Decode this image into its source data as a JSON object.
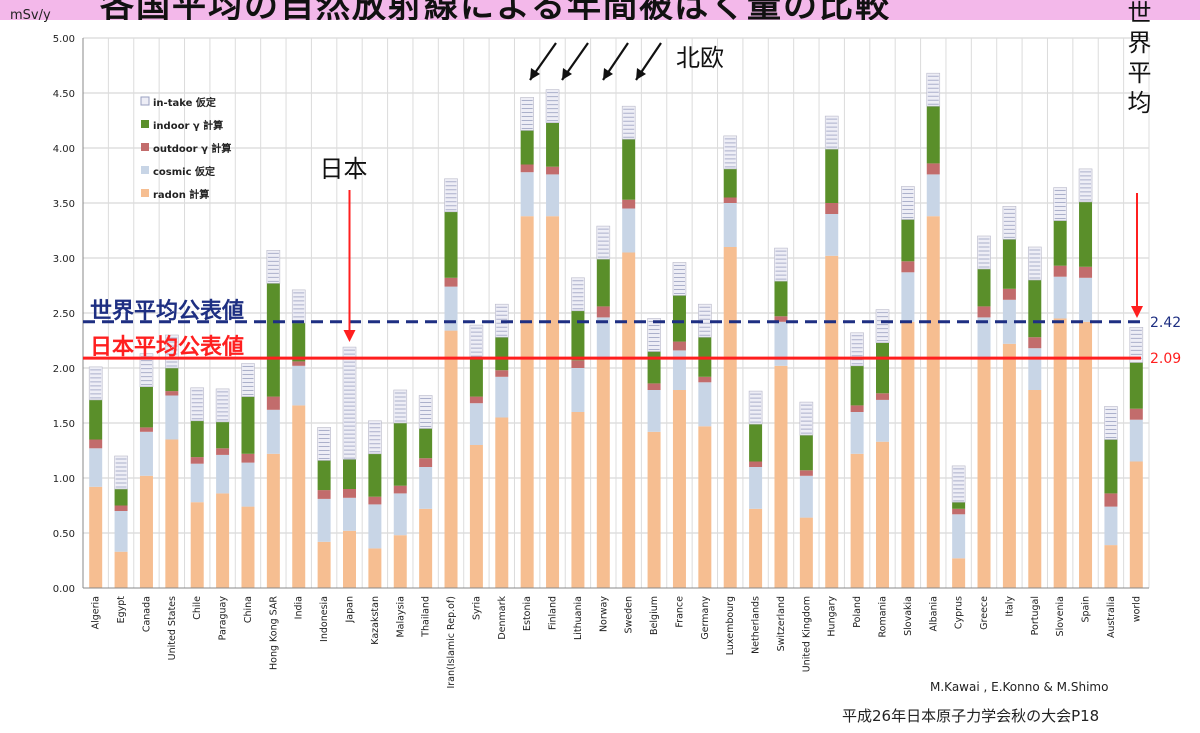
{
  "title": "各国平均の自然放射線による年間被ばく量の比較",
  "chart_data": {
    "type": "bar",
    "stacked": true,
    "ylabel": "mSv/y",
    "ylim": [
      0,
      5.0
    ],
    "yticks": [
      "0.00",
      "0.50",
      "1.00",
      "1.50",
      "2.00",
      "2.50",
      "3.00",
      "3.50",
      "4.00",
      "4.50",
      "5.00"
    ],
    "grid": true,
    "legend_position": "top-left",
    "categories": [
      "Algeria",
      "Egypt",
      "Canada",
      "United States",
      "Chile",
      "Paraguay",
      "China",
      "Hong Kong SAR",
      "India",
      "Indonesia",
      "Japan",
      "Kazakstan",
      "Malaysia",
      "Thailand",
      "Iran(Islamic Rep.of)",
      "Syria",
      "Denmark",
      "Estonia",
      "Finland",
      "Lithuania",
      "Norway",
      "Sweden",
      "Belgium",
      "France",
      "Germany",
      "Luxembourg",
      "Netherlands",
      "Switzerland",
      "United Kingdom",
      "Hungary",
      "Poland",
      "Romania",
      "Slovakia",
      "Albania",
      "Cyprus",
      "Greece",
      "Italy",
      "Portugal",
      "Slovenia",
      "Spain",
      "Australia",
      "world"
    ],
    "series": [
      {
        "name": "radon 計算",
        "color": "#f6be91",
        "values": [
          0.92,
          0.33,
          1.02,
          1.35,
          0.78,
          0.86,
          0.74,
          1.22,
          1.66,
          0.42,
          0.52,
          0.36,
          0.48,
          0.72,
          2.34,
          1.3,
          1.55,
          3.38,
          3.38,
          1.6,
          2.08,
          3.05,
          1.42,
          1.8,
          1.47,
          3.1,
          0.72,
          2.02,
          0.64,
          3.02,
          1.22,
          1.33,
          2.42,
          3.38,
          0.27,
          2.08,
          2.22,
          1.8,
          2.45,
          2.42,
          0.39,
          1.15
        ]
      },
      {
        "name": "cosmic 仮定",
        "color": "#c8d5e6",
        "values": [
          0.35,
          0.37,
          0.4,
          0.4,
          0.35,
          0.35,
          0.4,
          0.4,
          0.36,
          0.39,
          0.3,
          0.4,
          0.38,
          0.38,
          0.4,
          0.38,
          0.37,
          0.4,
          0.38,
          0.4,
          0.38,
          0.4,
          0.38,
          0.36,
          0.4,
          0.4,
          0.38,
          0.4,
          0.38,
          0.38,
          0.38,
          0.38,
          0.45,
          0.38,
          0.4,
          0.38,
          0.4,
          0.38,
          0.38,
          0.4,
          0.35,
          0.38
        ]
      },
      {
        "name": "outdoor γ 計算",
        "color": "#c26c6c",
        "values": [
          0.08,
          0.05,
          0.04,
          0.04,
          0.06,
          0.06,
          0.08,
          0.12,
          0.04,
          0.08,
          0.08,
          0.07,
          0.07,
          0.08,
          0.08,
          0.06,
          0.06,
          0.07,
          0.07,
          0.07,
          0.1,
          0.08,
          0.06,
          0.08,
          0.05,
          0.05,
          0.05,
          0.05,
          0.05,
          0.1,
          0.06,
          0.06,
          0.1,
          0.1,
          0.05,
          0.1,
          0.1,
          0.1,
          0.1,
          0.1,
          0.12,
          0.1
        ]
      },
      {
        "name": "indoor γ 計算",
        "color": "#5a8f2a",
        "values": [
          0.36,
          0.15,
          0.37,
          0.21,
          0.33,
          0.24,
          0.52,
          1.03,
          0.35,
          0.27,
          0.27,
          0.39,
          0.57,
          0.27,
          0.6,
          0.35,
          0.3,
          0.31,
          0.4,
          0.45,
          0.43,
          0.55,
          0.29,
          0.42,
          0.36,
          0.26,
          0.34,
          0.32,
          0.32,
          0.49,
          0.36,
          0.46,
          0.38,
          0.52,
          0.06,
          0.34,
          0.45,
          0.52,
          0.41,
          0.59,
          0.49,
          0.42
        ]
      },
      {
        "name": "in-take 仮定",
        "color": "#eeeef6",
        "values": [
          0.3,
          0.3,
          0.3,
          0.3,
          0.3,
          0.3,
          0.3,
          0.3,
          0.3,
          0.3,
          1.02,
          0.3,
          0.3,
          0.3,
          0.3,
          0.3,
          0.3,
          0.3,
          0.3,
          0.3,
          0.3,
          0.3,
          0.3,
          0.3,
          0.3,
          0.3,
          0.3,
          0.3,
          0.3,
          0.3,
          0.3,
          0.3,
          0.3,
          0.3,
          0.33,
          0.3,
          0.3,
          0.3,
          0.3,
          0.3,
          0.3,
          0.32
        ]
      }
    ],
    "reference_lines": [
      {
        "label": "世界平均公表値",
        "value": 2.42,
        "value_label": "2.42",
        "color": "#1e2f82",
        "style": "dashed"
      },
      {
        "label": "日本平均公表値",
        "value": 2.09,
        "value_label": "2.09",
        "color": "#ff1f1f",
        "style": "solid"
      }
    ],
    "annotations": [
      {
        "text": "日本",
        "target": "Japan",
        "color": "#ff1f1f"
      },
      {
        "text": "北欧",
        "targets": [
          "Estonia",
          "Finland",
          "Norway",
          "Sweden"
        ],
        "color": "#111111"
      },
      {
        "text": "世界平均",
        "target": "world",
        "color": "#ff1f1f"
      }
    ]
  },
  "credits": {
    "authors": "M.Kawai , E.Konno & M.Shimo",
    "source": "平成26年日本原子力学会秋の大会P18"
  }
}
